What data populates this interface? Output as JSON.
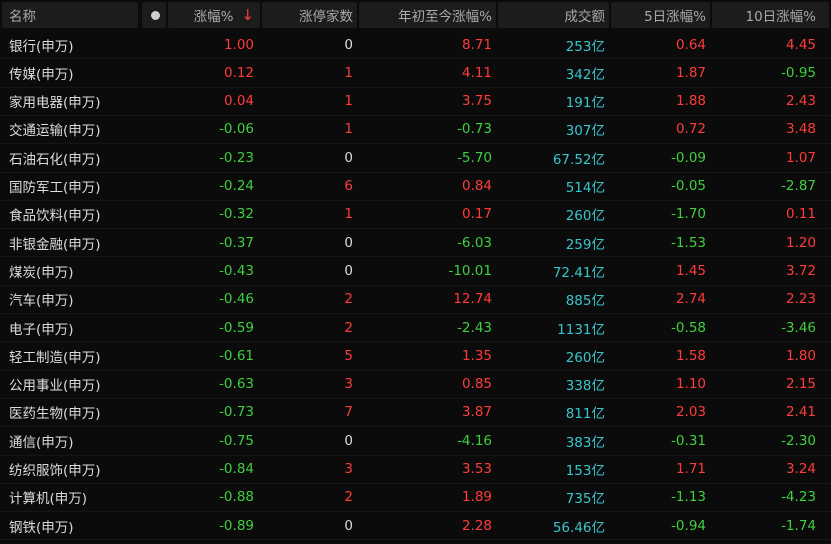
{
  "header": {
    "name": "名称",
    "change_pct": "涨幅%",
    "sort_arrow": "↓",
    "limit_up": "涨停家数",
    "ytd_pct": "年初至今涨幅%",
    "turnover": "成交额",
    "d5_pct": "5日涨幅%",
    "d10_pct": "10日涨幅%"
  },
  "colors": {
    "up": "#ff3b3b",
    "down": "#3fcf3f",
    "turnover": "#38c6cc",
    "background": "#0b0b0b"
  },
  "rows": [
    {
      "name": "银行(申万)",
      "chg": "1.00",
      "limit": "0",
      "ytd": "8.71",
      "turn": "253亿",
      "d5": "0.64",
      "d10": "4.45"
    },
    {
      "name": "传媒(申万)",
      "chg": "0.12",
      "limit": "1",
      "ytd": "4.11",
      "turn": "342亿",
      "d5": "1.87",
      "d10": "-0.95"
    },
    {
      "name": "家用电器(申万)",
      "chg": "0.04",
      "limit": "1",
      "ytd": "3.75",
      "turn": "191亿",
      "d5": "1.88",
      "d10": "2.43"
    },
    {
      "name": "交通运输(申万)",
      "chg": "-0.06",
      "limit": "1",
      "ytd": "-0.73",
      "turn": "307亿",
      "d5": "0.72",
      "d10": "3.48"
    },
    {
      "name": "石油石化(申万)",
      "chg": "-0.23",
      "limit": "0",
      "ytd": "-5.70",
      "turn": "67.52亿",
      "d5": "-0.09",
      "d10": "1.07"
    },
    {
      "name": "国防军工(申万)",
      "chg": "-0.24",
      "limit": "6",
      "ytd": "0.84",
      "turn": "514亿",
      "d5": "-0.05",
      "d10": "-2.87"
    },
    {
      "name": "食品饮料(申万)",
      "chg": "-0.32",
      "limit": "1",
      "ytd": "0.17",
      "turn": "260亿",
      "d5": "-1.70",
      "d10": "0.11"
    },
    {
      "name": "非银金融(申万)",
      "chg": "-0.37",
      "limit": "0",
      "ytd": "-6.03",
      "turn": "259亿",
      "d5": "-1.53",
      "d10": "1.20"
    },
    {
      "name": "煤炭(申万)",
      "chg": "-0.43",
      "limit": "0",
      "ytd": "-10.01",
      "turn": "72.41亿",
      "d5": "1.45",
      "d10": "3.72"
    },
    {
      "name": "汽车(申万)",
      "chg": "-0.46",
      "limit": "2",
      "ytd": "12.74",
      "turn": "885亿",
      "d5": "2.74",
      "d10": "2.23"
    },
    {
      "name": "电子(申万)",
      "chg": "-0.59",
      "limit": "2",
      "ytd": "-2.43",
      "turn": "1131亿",
      "d5": "-0.58",
      "d10": "-3.46"
    },
    {
      "name": "轻工制造(申万)",
      "chg": "-0.61",
      "limit": "5",
      "ytd": "1.35",
      "turn": "260亿",
      "d5": "1.58",
      "d10": "1.80"
    },
    {
      "name": "公用事业(申万)",
      "chg": "-0.63",
      "limit": "3",
      "ytd": "0.85",
      "turn": "338亿",
      "d5": "1.10",
      "d10": "2.15"
    },
    {
      "name": "医药生物(申万)",
      "chg": "-0.73",
      "limit": "7",
      "ytd": "3.87",
      "turn": "811亿",
      "d5": "2.03",
      "d10": "2.41"
    },
    {
      "name": "通信(申万)",
      "chg": "-0.75",
      "limit": "0",
      "ytd": "-4.16",
      "turn": "383亿",
      "d5": "-0.31",
      "d10": "-2.30"
    },
    {
      "name": "纺织服饰(申万)",
      "chg": "-0.84",
      "limit": "3",
      "ytd": "3.53",
      "turn": "153亿",
      "d5": "1.71",
      "d10": "3.24"
    },
    {
      "name": "计算机(申万)",
      "chg": "-0.88",
      "limit": "2",
      "ytd": "1.89",
      "turn": "735亿",
      "d5": "-1.13",
      "d10": "-4.23"
    },
    {
      "name": "钢铁(申万)",
      "chg": "-0.89",
      "limit": "0",
      "ytd": "2.28",
      "turn": "56.46亿",
      "d5": "-0.94",
      "d10": "-1.74"
    }
  ]
}
